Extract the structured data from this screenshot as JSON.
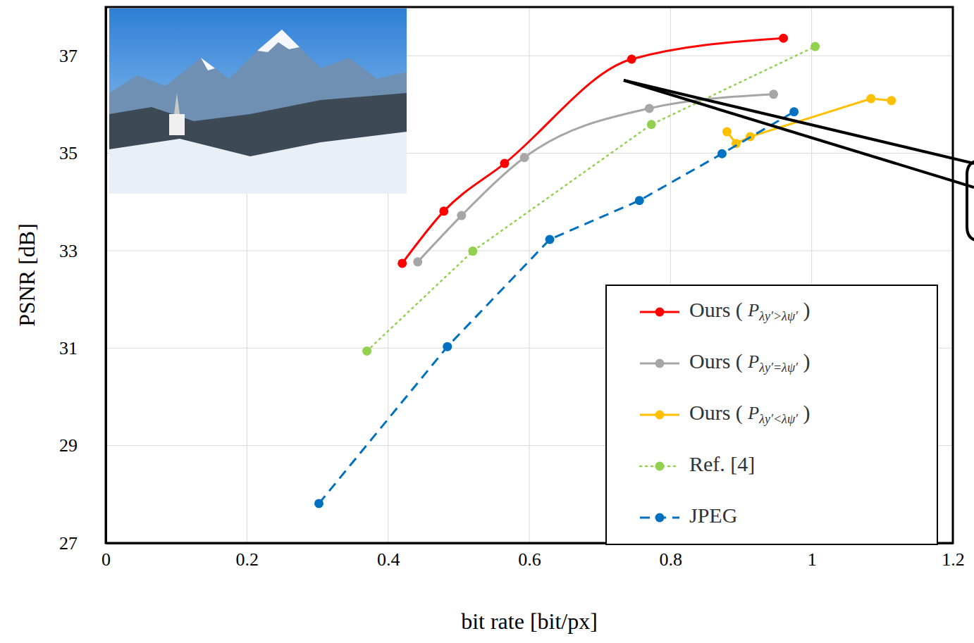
{
  "chart_data": {
    "type": "line",
    "x_label": "bit rate [bit/px]",
    "y_label": "PSNR [dB]",
    "xlim": [
      0,
      1.2
    ],
    "xticks": [
      0,
      0.2,
      0.4,
      0.6,
      0.8,
      1,
      1.2
    ],
    "ylim": [
      27,
      38
    ],
    "yticks": [
      27,
      29,
      31,
      33,
      35,
      37
    ],
    "grid": true,
    "legend": "lower right",
    "series": [
      {
        "name": "Ours (Pλy′>λψ′)",
        "color": "#ff0000",
        "type": "spline",
        "marker": "circle",
        "line_style": "solid",
        "x": [
          0.42,
          0.479,
          0.565,
          0.745,
          0.96
        ],
        "values": [
          32.74,
          33.81,
          34.79,
          36.93,
          37.36
        ]
      },
      {
        "name": "Ours (Pλy′=λψ′)",
        "color": "#a6a6a6",
        "type": "spline",
        "marker": "circle",
        "line_style": "solid",
        "x": [
          0.442,
          0.504,
          0.593,
          0.77,
          0.946
        ],
        "values": [
          32.77,
          33.72,
          34.91,
          35.92,
          36.21
        ]
      },
      {
        "name": "Ours (Pλy′<λψ′)",
        "color": "#ffc000",
        "type": "line",
        "marker": "circle",
        "line_style": "solid",
        "x": [
          0.88,
          0.893,
          0.913,
          1.084,
          1.113
        ],
        "values": [
          35.44,
          35.2,
          35.34,
          36.12,
          36.08
        ]
      },
      {
        "name": "Ref. [4]",
        "color": "#92d050",
        "type": "line",
        "marker": "circle",
        "line_style": "dotted",
        "x": [
          0.37,
          0.52,
          0.773,
          1.005
        ],
        "values": [
          30.94,
          32.99,
          35.59,
          37.19
        ]
      },
      {
        "name": "JPEG",
        "color": "#0070c0",
        "type": "line",
        "marker": "circle",
        "line_style": "dashed",
        "x": [
          0.302,
          0.484,
          0.629,
          0.756,
          0.873,
          0.975
        ],
        "values": [
          27.81,
          31.03,
          33.23,
          34.03,
          34.99,
          35.85
        ]
      }
    ]
  }
}
